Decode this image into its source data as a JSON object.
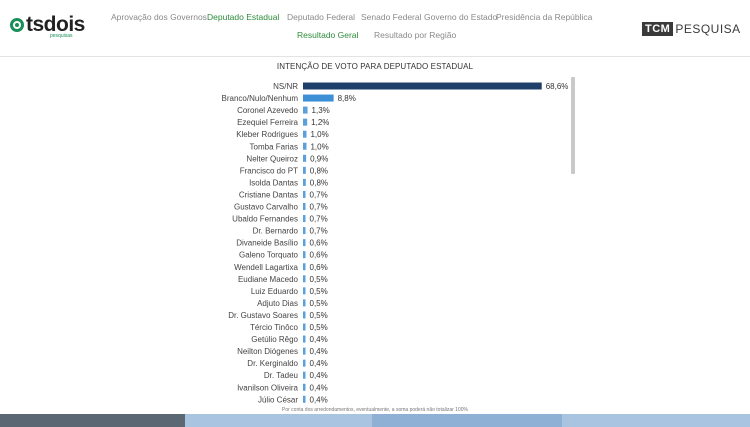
{
  "header": {
    "logo_text": "tsdois",
    "logo_sub": "pesquisas",
    "nav": [
      {
        "label": "Aprovação dos Governos",
        "active": false
      },
      {
        "label": "Deputado Estadual",
        "active": true
      },
      {
        "label": "Deputado Federal",
        "active": false
      },
      {
        "label": "Senado Federal",
        "active": false
      },
      {
        "label": "Governo do Estado",
        "active": false
      },
      {
        "label": "Presidência da República",
        "active": false
      }
    ],
    "subnav": [
      {
        "label": "Resultado Geral",
        "active": true
      },
      {
        "label": "Resultado por Região",
        "active": false
      }
    ],
    "brand_box": "TCM",
    "brand_text": "PESQUISA"
  },
  "colors": {
    "accent": "#2e8b3a",
    "bar_top": "#1f3f6b",
    "bar_second": "#3d8fd6",
    "bar_rest": "#5aa0dc"
  },
  "footnote": "Por conta dos arredondamentos, eventualmente, a soma poderá não totalizar 100%",
  "chart_data": {
    "type": "bar",
    "orientation": "horizontal",
    "title": "INTENÇÃO DE VOTO PARA DEPUTADO ESTADUAL",
    "xlim": [
      0,
      70
    ],
    "categories": [
      "NS/NR",
      "Branco/Nulo/Nenhum",
      "Coronel Azevedo",
      "Ezequiel Ferreira",
      "Kleber Rodrigues",
      "Tomba Farias",
      "Nelter Queiroz",
      "Francisco do PT",
      "Isolda Dantas",
      "Cristiane Dantas",
      "Gustavo Carvalho",
      "Ubaldo Fernandes",
      "Dr. Bernardo",
      "Divaneide Basílio",
      "Galeno Torquato",
      "Wendell Lagartixa",
      "Eudiane Macedo",
      "Luiz Eduardo",
      "Adjuto Dias",
      "Dr. Gustavo Soares",
      "Tércio Tinôco",
      "Getúlio Rêgo",
      "Neilton Diógenes",
      "Dr. Kerginaldo",
      "Dr. Tadeu",
      "Ivanilson Oliveira",
      "Júlio César"
    ],
    "values": [
      68.6,
      8.8,
      1.3,
      1.2,
      1.0,
      1.0,
      0.9,
      0.8,
      0.8,
      0.7,
      0.7,
      0.7,
      0.7,
      0.6,
      0.6,
      0.6,
      0.5,
      0.5,
      0.5,
      0.5,
      0.5,
      0.4,
      0.4,
      0.4,
      0.4,
      0.4,
      0.4
    ],
    "value_labels": [
      "68,6%",
      "8,8%",
      "1,3%",
      "1,2%",
      "1,0%",
      "1,0%",
      "0,9%",
      "0,8%",
      "0,8%",
      "0,7%",
      "0,7%",
      "0,7%",
      "0,7%",
      "0,6%",
      "0,6%",
      "0,6%",
      "0,5%",
      "0,5%",
      "0,5%",
      "0,5%",
      "0,5%",
      "0,4%",
      "0,4%",
      "0,4%",
      "0,4%",
      "0,4%",
      "0,4%"
    ]
  }
}
